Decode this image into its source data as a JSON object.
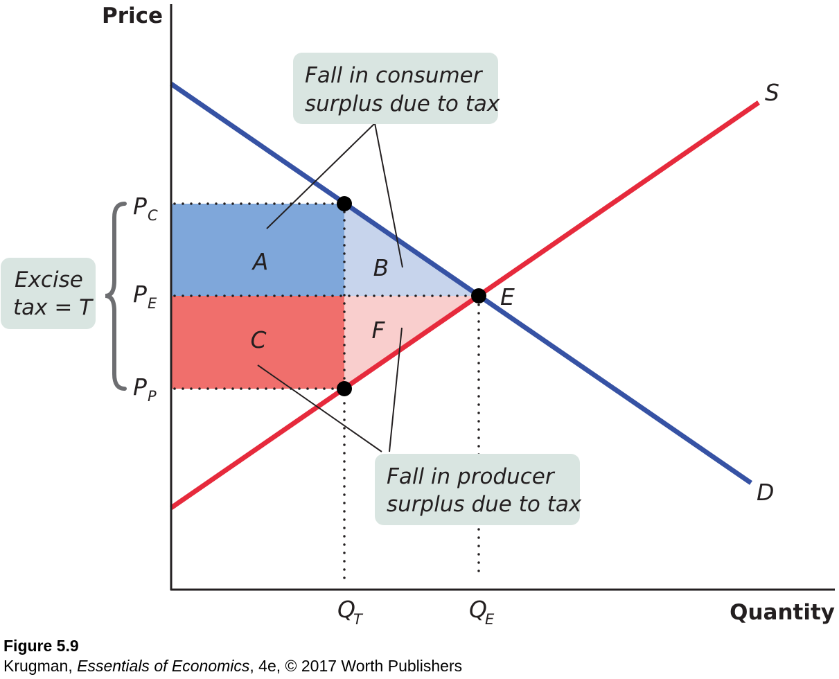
{
  "chart_data": {
    "type": "line",
    "xlabel": "Quantity",
    "ylabel": "Price",
    "series": [
      {
        "name": "D",
        "line": "demand"
      },
      {
        "name": "S",
        "line": "supply"
      }
    ],
    "points": {
      "E": "E"
    },
    "x_ticks": [
      {
        "main": "Q",
        "sub": "T"
      },
      {
        "main": "Q",
        "sub": "E"
      }
    ],
    "y_ticks": [
      {
        "main": "P",
        "sub": "C"
      },
      {
        "main": "P",
        "sub": "E"
      },
      {
        "main": "P",
        "sub": "P"
      }
    ],
    "areas": [
      {
        "label": "A",
        "color": "#7fa7da"
      },
      {
        "label": "B",
        "color": "#c7d4ec"
      },
      {
        "label": "C",
        "color": "#f06f6c"
      },
      {
        "label": "F",
        "color": "#f9cecd"
      }
    ],
    "annotations": {
      "tax_box": [
        "Excise",
        "tax = T"
      ],
      "consumer_box": [
        "Fall in consumer",
        "surplus due to tax"
      ],
      "producer_box": [
        "Fall in producer",
        "surplus due to tax"
      ]
    },
    "colors": {
      "demand": "#3652a4",
      "supply": "#e62a3c",
      "callout_bg": "#d9e5e1",
      "brace": "#6d6e71"
    }
  },
  "caption": {
    "figure": "Figure 5.9",
    "credit_pre": "Krugman, ",
    "credit_title": "Essentials of Economics",
    "credit_post": ", 4e, © 2017 Worth Publishers"
  }
}
